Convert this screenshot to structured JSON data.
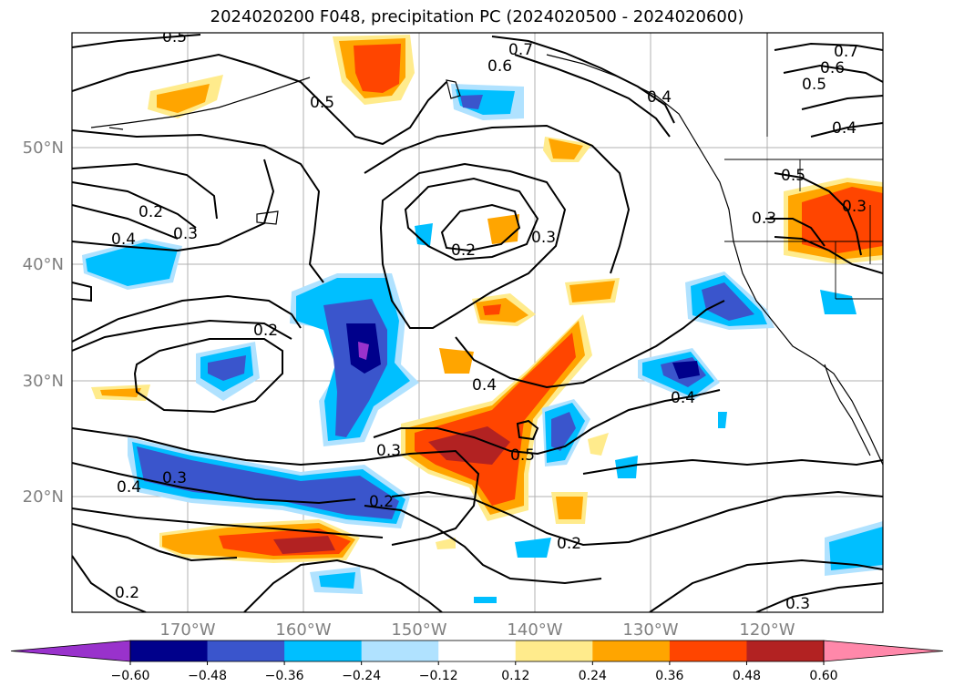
{
  "title": "2024020200 F048, precipitation PC (2024020500 - 2024020600)",
  "latitude_labels": [
    "50°N",
    "40°N",
    "30°N",
    "20°N"
  ],
  "longitude_labels": [
    "170°W",
    "160°W",
    "150°W",
    "140°W",
    "130°W",
    "120°W"
  ],
  "colorbar": {
    "ticks": [
      "−0.60",
      "−0.48",
      "−0.36",
      "−0.24",
      "−0.12",
      "0.12",
      "0.24",
      "0.36",
      "0.48",
      "0.60"
    ],
    "colors": [
      "#9932cc",
      "#00008b",
      "#3a55cc",
      "#00bfff",
      "#b0e2ff",
      "#ffffff",
      "#ffeb8c",
      "#ffa500",
      "#ff4500",
      "#b22222",
      "#ff88aa"
    ]
  },
  "contour_labels": [
    "0.5",
    "0.7",
    "0.6",
    "0.4",
    "0.5",
    "0.7",
    "0.6",
    "0.5",
    "0.4",
    "0.2",
    "0.4",
    "0.3",
    "0.2",
    "0.3",
    "0.5",
    "0.3",
    "0.2",
    "0.3",
    "0.4",
    "0.4",
    "0.3",
    "0.5",
    "0.3",
    "0.2",
    "0.4",
    "0.2",
    "0.2",
    "0.3"
  ]
}
